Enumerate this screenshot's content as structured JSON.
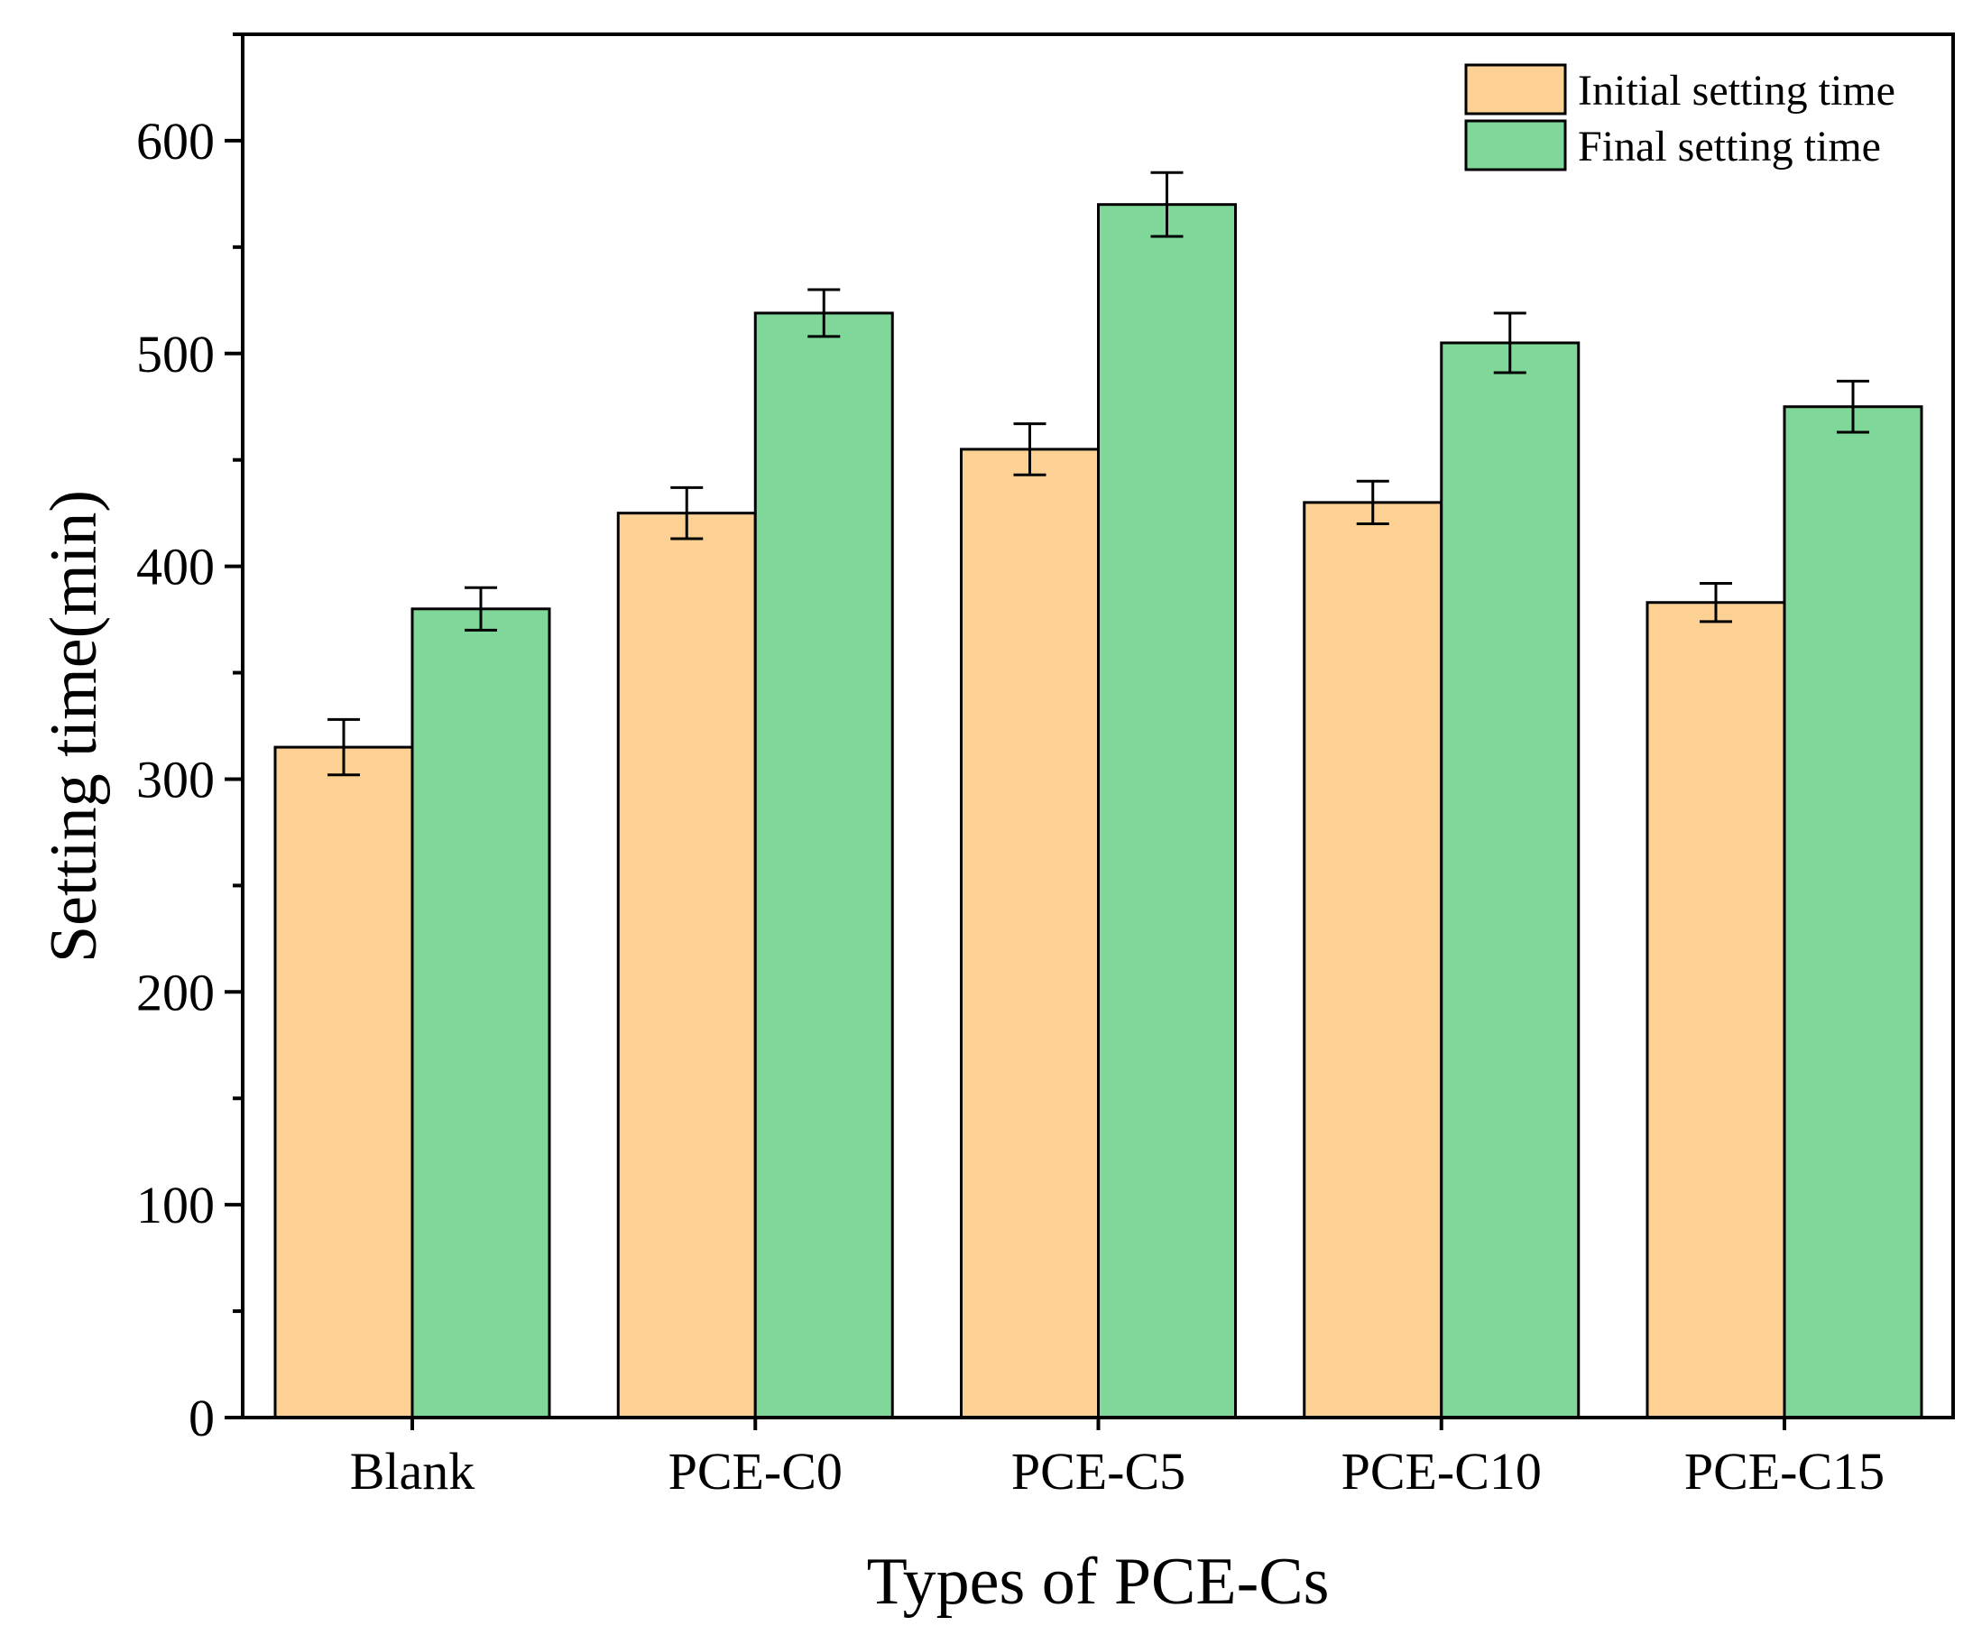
{
  "chart_data": {
    "type": "bar",
    "title": "",
    "xlabel": "Types of PCE-Cs",
    "ylabel": "Setting time(min)",
    "categories": [
      "Blank",
      "PCE-C0",
      "PCE-C5",
      "PCE-C10",
      "PCE-C15"
    ],
    "series": [
      {
        "name": "Initial setting time",
        "color": "#fdd093",
        "values": [
          315,
          425,
          455,
          430,
          383
        ],
        "errors": [
          13,
          12,
          12,
          10,
          9
        ]
      },
      {
        "name": "Final setting time",
        "color": "#7fd899",
        "values": [
          380,
          519,
          570,
          505,
          475
        ],
        "errors": [
          10,
          11,
          15,
          14,
          12
        ]
      }
    ],
    "ylim": [
      0,
      650
    ],
    "yticks": [
      0,
      100,
      200,
      300,
      400,
      500,
      600
    ],
    "minor_step": 50,
    "legend_position": "top-right",
    "grid": false
  }
}
